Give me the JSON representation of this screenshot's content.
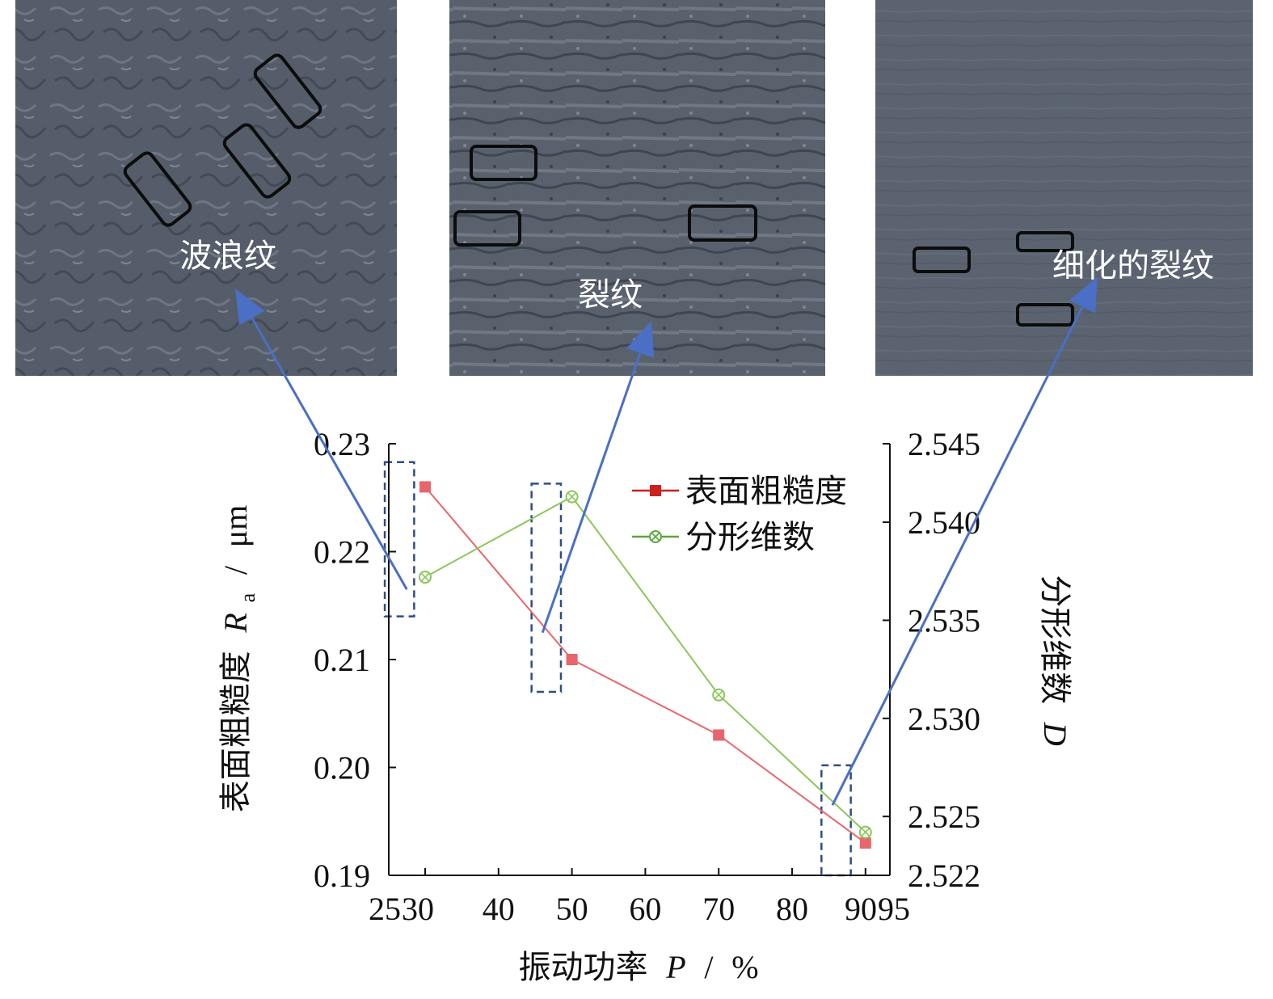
{
  "micrographs": [
    {
      "label": "波浪纹",
      "target_x": 27.5,
      "target_y": 0.2165
    },
    {
      "label": "裂纹",
      "target_x": 46,
      "target_y": 0.2125
    },
    {
      "label": "细化的裂纹",
      "target_x": 85.5,
      "target_y": 0.1965
    }
  ],
  "chart_data": {
    "type": "line",
    "xlabel": "振动功率",
    "xlabel_var": "P",
    "xlabel_unit": "%",
    "ylabel": "表面粗糙度",
    "ylabel_var": "R",
    "ylabel_sub": "a",
    "ylabel_unit": "μm",
    "y2label": "分形维数",
    "y2label_var": "D",
    "xlim": [
      25,
      95
    ],
    "ylim": [
      0.19,
      0.23
    ],
    "y2lim": [
      2.522,
      2.544
    ],
    "x_ticks": [
      25,
      30,
      40,
      50,
      60,
      70,
      80,
      90,
      95
    ],
    "y_ticks": [
      "0.19",
      "0.20",
      "0.21",
      "0.22",
      "0.23"
    ],
    "y2_ticks": [
      "2.522",
      "2.525",
      "2.530",
      "2.535",
      "2.540",
      "2.545"
    ],
    "legend_position": "top-right",
    "series": [
      {
        "name": "表面粗糙度",
        "axis": "left",
        "color": "#e8666b",
        "marker": "square",
        "x": [
          30,
          50,
          70,
          90
        ],
        "y": [
          0.226,
          0.21,
          0.203,
          0.193
        ]
      },
      {
        "name": "分形维数",
        "axis": "right",
        "color": "#8cc65a",
        "marker": "circle-x",
        "x": [
          30,
          50,
          90,
          70
        ],
        "y": [
          2.5372,
          2.5413,
          2.5242,
          2.5312
        ]
      }
    ],
    "highlight_boxes": [
      {
        "x_range": [
          24.5,
          28.5
        ],
        "y_range": [
          0.214,
          0.2283
        ]
      },
      {
        "x_range": [
          44.5,
          48.5
        ],
        "y_range": [
          0.207,
          0.2263
        ]
      },
      {
        "x_range": [
          84,
          88
        ],
        "y_range": [
          0.19,
          0.2002
        ]
      }
    ],
    "colors": {
      "arrow": "#4a6fc4",
      "box": "#2f4d86",
      "legend_line_1": "#cc1f1f",
      "legend_line_2": "#5aa83a"
    }
  }
}
